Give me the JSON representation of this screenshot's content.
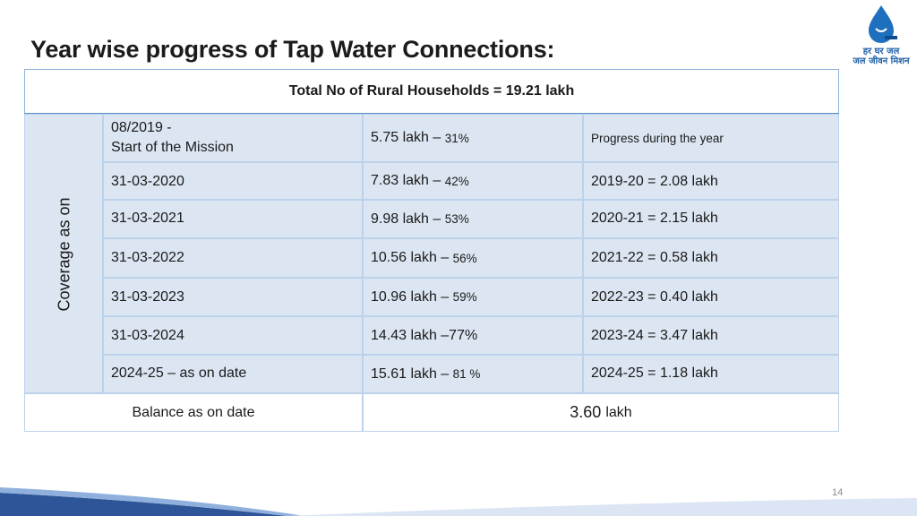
{
  "title": "Year wise progress of Tap Water Connections:",
  "logo": {
    "line1": "हर घर जल",
    "line2": "जल जीवन मिशन"
  },
  "table": {
    "header": "Total No of Rural Households = 19.21 lakh",
    "side_label": "Coverage as on",
    "rows": [
      {
        "date_line1": "08/2019 -",
        "date_line2": "Start of the Mission",
        "coverage_main": "5.75 lakh – ",
        "coverage_pct": "31%",
        "progress": "Progress during the year"
      },
      {
        "date": "31-03-2020",
        "coverage_main": "7.83 lakh – ",
        "coverage_pct": "42%",
        "progress": "2019-20 = 2.08 lakh"
      },
      {
        "date": "31-03-2021",
        "coverage_main": "9.98 lakh – ",
        "coverage_pct": "53%",
        "progress": "2020-21 = 2.15 lakh"
      },
      {
        "date": "31-03-2022",
        "coverage_main": "10.56 lakh – ",
        "coverage_pct": "56%",
        "progress": "2021-22 = 0.58 lakh"
      },
      {
        "date": "31-03-2023",
        "coverage_main": "10.96 lakh – ",
        "coverage_pct": "59%",
        "progress": "2022-23 = 0.40 lakh"
      },
      {
        "date": "31-03-2024",
        "coverage_main": "14.43 lakh –77%",
        "coverage_pct": "",
        "progress": "2023-24 = 3.47 lakh"
      },
      {
        "date": "2024-25 – as on date",
        "coverage_main": "15.61 lakh – ",
        "coverage_pct": "81 %",
        "progress": "2024-25 = 1.18 lakh"
      }
    ],
    "footer_label": "Balance as on date",
    "footer_value": "3.60",
    "footer_unit": "lakh"
  },
  "page_number": "14",
  "colors": {
    "row_fill": "#dce6f2",
    "border": "#bcd2ea",
    "brand_blue": "#1f5fa8",
    "wave": "#2e5597"
  }
}
